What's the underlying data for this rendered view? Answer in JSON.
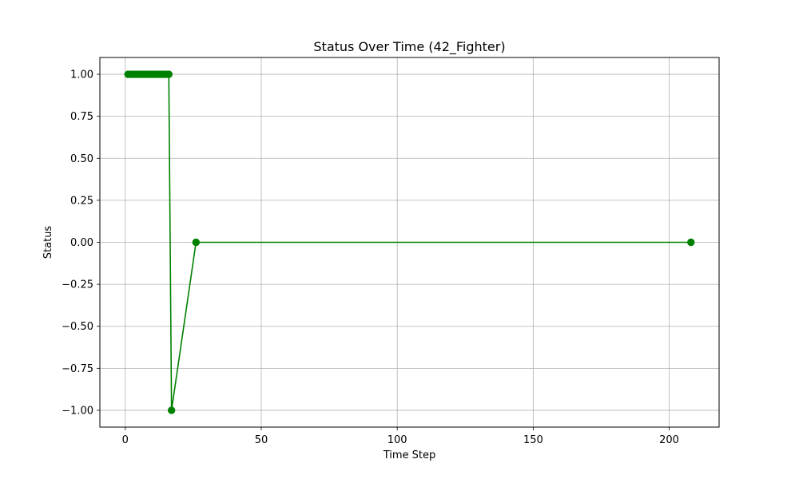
{
  "chart_data": {
    "type": "line",
    "title": "Status Over Time (42_Fighter)",
    "xlabel": "Time Step",
    "ylabel": "Status",
    "xlim": [
      -9.35,
      218.35
    ],
    "ylim": [
      -1.1,
      1.1
    ],
    "x_ticks": [
      0,
      50,
      100,
      150,
      200
    ],
    "x_tick_labels": [
      "0",
      "50",
      "100",
      "150",
      "200"
    ],
    "y_ticks": [
      -1.0,
      -0.75,
      -0.5,
      -0.25,
      0.0,
      0.25,
      0.5,
      0.75,
      1.0
    ],
    "y_tick_labels": [
      "−1.00",
      "−0.75",
      "−0.50",
      "−0.25",
      "0.00",
      "0.25",
      "0.50",
      "0.75",
      "1.00"
    ],
    "grid": true,
    "series": [
      {
        "color": "#008000",
        "marker": "circle",
        "x": [
          1,
          2,
          3,
          4,
          5,
          6,
          7,
          8,
          9,
          10,
          11,
          12,
          13,
          14,
          15,
          16,
          17,
          26,
          208
        ],
        "y": [
          1,
          1,
          1,
          1,
          1,
          1,
          1,
          1,
          1,
          1,
          1,
          1,
          1,
          1,
          1,
          1,
          -1,
          0,
          0
        ]
      }
    ]
  }
}
